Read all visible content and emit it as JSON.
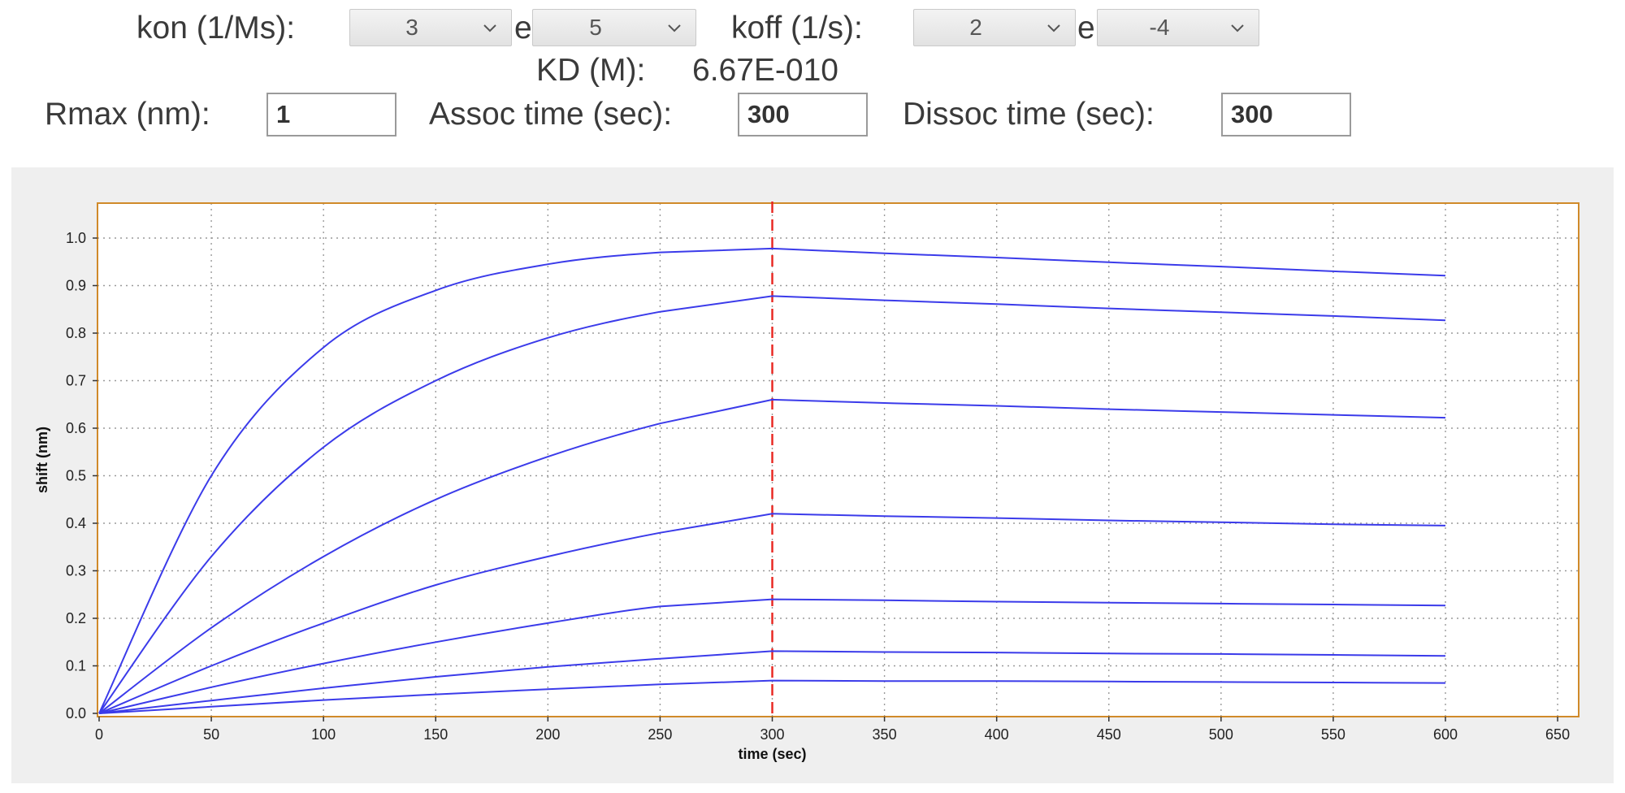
{
  "controls": {
    "kon_label": "kon (1/Ms):",
    "kon_mantissa": "3",
    "kon_e": "e",
    "kon_exponent": "5",
    "koff_label": "koff (1/s):",
    "koff_mantissa": "2",
    "koff_e": "e",
    "koff_exponent": "-4",
    "kd_label": "KD (M):",
    "kd_value": "6.67E-010",
    "rmax_label": "Rmax (nm):",
    "rmax_value": "1",
    "assoc_label": "Assoc time (sec):",
    "assoc_value": "300",
    "dissoc_label": "Dissoc time (sec):",
    "dissoc_value": "300"
  },
  "colors": {
    "curve": "#3b3bea",
    "marker": "#e8241e",
    "frame": "#d08a2a"
  },
  "chart_data": {
    "type": "line",
    "xlabel": "time (sec)",
    "ylabel": "shift (nm)",
    "xlim": [
      0,
      660
    ],
    "ylim": [
      0,
      1.07
    ],
    "xticks": [
      0,
      50,
      100,
      150,
      200,
      250,
      300,
      350,
      400,
      450,
      500,
      550,
      600,
      650
    ],
    "yticks": [
      0.0,
      0.1,
      0.2,
      0.3,
      0.4,
      0.5,
      0.6,
      0.7,
      0.8,
      0.9,
      1.0
    ],
    "ytick_labels": [
      "0.0",
      "0.1",
      "0.2",
      "0.3",
      "0.4",
      "0.5",
      "0.6",
      "0.7",
      "0.8",
      "0.9",
      "1.0"
    ],
    "grid": true,
    "vline_x": 300,
    "series": [
      {
        "x": [
          0,
          50,
          100,
          150,
          200,
          250,
          300,
          350,
          400,
          450,
          500,
          550,
          600
        ],
        "y": [
          0,
          0.014,
          0.028,
          0.04,
          0.051,
          0.061,
          0.069,
          0.068,
          0.068,
          0.067,
          0.066,
          0.065,
          0.064
        ]
      },
      {
        "x": [
          0,
          50,
          100,
          150,
          200,
          250,
          300,
          350,
          400,
          450,
          500,
          550,
          600
        ],
        "y": [
          0,
          0.027,
          0.053,
          0.077,
          0.098,
          0.115,
          0.131,
          0.129,
          0.128,
          0.126,
          0.125,
          0.123,
          0.121
        ]
      },
      {
        "x": [
          0,
          50,
          100,
          150,
          200,
          250,
          300,
          350,
          400,
          450,
          500,
          550,
          600
        ],
        "y": [
          0,
          0.055,
          0.105,
          0.15,
          0.19,
          0.225,
          0.24,
          0.238,
          0.235,
          0.233,
          0.231,
          0.229,
          0.227
        ]
      },
      {
        "x": [
          0,
          50,
          100,
          150,
          200,
          250,
          300,
          350,
          400,
          450,
          500,
          550,
          600
        ],
        "y": [
          0,
          0.1,
          0.19,
          0.27,
          0.33,
          0.38,
          0.42,
          0.415,
          0.411,
          0.406,
          0.402,
          0.398,
          0.395
        ]
      },
      {
        "x": [
          0,
          50,
          100,
          150,
          200,
          250,
          300,
          350,
          400,
          450,
          500,
          550,
          600
        ],
        "y": [
          0,
          0.18,
          0.33,
          0.45,
          0.54,
          0.61,
          0.66,
          0.653,
          0.647,
          0.64,
          0.634,
          0.628,
          0.622
        ]
      },
      {
        "x": [
          0,
          50,
          100,
          150,
          200,
          250,
          300,
          350,
          400,
          450,
          500,
          550,
          600
        ],
        "y": [
          0,
          0.33,
          0.56,
          0.7,
          0.79,
          0.845,
          0.878,
          0.869,
          0.861,
          0.852,
          0.844,
          0.836,
          0.827
        ]
      },
      {
        "x": [
          0,
          50,
          100,
          150,
          200,
          250,
          300,
          350,
          400,
          450,
          500,
          550,
          600
        ],
        "y": [
          0,
          0.5,
          0.77,
          0.89,
          0.945,
          0.97,
          0.978,
          0.968,
          0.959,
          0.949,
          0.94,
          0.93,
          0.921
        ]
      }
    ]
  }
}
